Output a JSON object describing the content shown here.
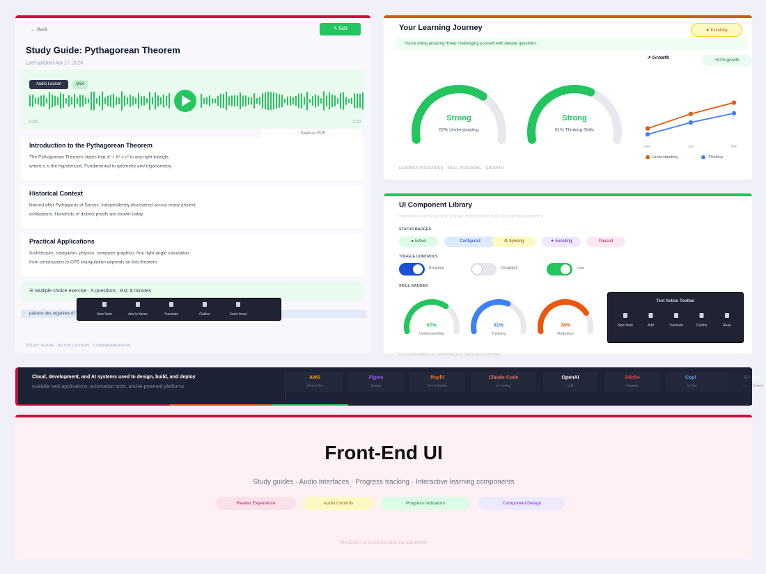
{
  "study_guide": {
    "back": "← Back",
    "edit": "✎ Edit",
    "title": "Study Guide: Pythagorean Theorem",
    "updated": "Last updated Apr 17, 2026",
    "audio_tabs": [
      "Audio Lesson",
      "Q&A"
    ],
    "time_start": "0:00",
    "time_end": "2:29",
    "save": "↓ Save as PDF",
    "sections": [
      {
        "heading": "Introduction to the Pythagorean Theorem",
        "lines": [
          "The Pythagorean Theorem states that a² + b² = c² in any right triangle,",
          "where c is the hypotenuse. Fundamental to geometry and trigonometry."
        ]
      },
      {
        "heading": "Historical Context",
        "lines": [
          "Named after Pythagoras of Samos. Independently discovered across many ancient",
          "civilizations. Hundreds of distinct proofs are known today."
        ]
      },
      {
        "heading": "Practical Applications",
        "lines": [
          "Architecture, navigation, physics, computer graphics. Any right-angle calculation",
          "from construction to GPS triangulation depends on this theorem."
        ]
      }
    ],
    "exercise": "☰ Multiple choice exercise · 5 questions · Est. 8 minutes",
    "highlight": "paisons des organites d'i",
    "toolbar": [
      "New Note",
      "Add to Items",
      "Translate",
      "Outline",
      "Send Issue"
    ],
    "footer": "STUDY GUIDE · AUDIO LESSON · COMPREHENSION"
  },
  "journey": {
    "title": "Your Learning Journey",
    "badge": "★ Excelling",
    "banner": "You're doing amazing! Keep challenging yourself with deeper questions.",
    "gauges": [
      {
        "status": "Strong",
        "percent": 67,
        "caption": "67% Understanding"
      },
      {
        "status": "Strong",
        "percent": 61,
        "caption": "61% Thinking Skills"
      }
    ],
    "growth": {
      "label": "↗ Growth",
      "badge": "+91% growth",
      "categories": [
        "Dec",
        "Jan",
        "Feb"
      ],
      "ylim": [
        0,
        100
      ],
      "series": [
        {
          "name": "Understanding",
          "color": "#ea580c",
          "values": [
            32,
            54,
            71
          ]
        },
        {
          "name": "Thinking",
          "color": "#3b82f6",
          "values": [
            23,
            41,
            55
          ]
        }
      ]
    },
    "footer": "LEARNER PROGRESS · SKILL TRACKING · GROWTH"
  },
  "library": {
    "title": "UI Component Library",
    "subtitle": "Interactive elements and display components built for learning platforms",
    "badges_heading": "STATUS BADGES",
    "badges": [
      {
        "label": "● Active",
        "bg": "#dcfce7",
        "fg": "#166534"
      },
      {
        "label": "Configured",
        "bg": "#dbeafe",
        "fg": "#1e40af"
      },
      {
        "label": "⚙ Syncing",
        "bg": "#fef9c3",
        "fg": "#854d0e"
      },
      {
        "label": "✦ Excelling",
        "bg": "#ede9fe",
        "fg": "#5b21b6"
      },
      {
        "label": "Paused",
        "bg": "#fce7f3",
        "fg": "#9d174d"
      }
    ],
    "toggles_heading": "TOGGLE CONTROLS",
    "toggles": [
      {
        "label": "Enabled",
        "on": true,
        "color": "#1d4ed8"
      },
      {
        "label": "Disabled",
        "on": false,
        "color": "#e5e7eb"
      },
      {
        "label": "Live",
        "on": true,
        "color": "#22c55e"
      }
    ],
    "gauges_heading": "SKILL GAUGES",
    "gauges": [
      {
        "value": 67,
        "label": "67%",
        "caption": "Understanding",
        "color": "#22c55e"
      },
      {
        "value": 61,
        "label": "61%",
        "caption": "Thinking",
        "color": "#3b82f6"
      },
      {
        "value": 78,
        "label": "78%",
        "caption": "Retention",
        "color": "#ea580c"
      }
    ],
    "toolbar_title": "Text Action Toolbar",
    "toolbar": [
      "New Note",
      "Add",
      "Translate",
      "Outline",
      "Read"
    ],
    "footer": "UI COMPONENTS · CONTROLS · DESIGN SYSTEM"
  },
  "tools_band": {
    "lines": [
      "Cloud, development, and AI systems used to design, build, and deploy",
      "scalable web applications, automation tools, and AI-powered platforms."
    ],
    "tools": [
      {
        "name": "AWS",
        "role": "Cloud Infra",
        "color": "#f59e0b"
      },
      {
        "name": "Figma",
        "role": "Design",
        "color": "#a855f7"
      },
      {
        "name": "Replit",
        "role": "Dev & Deploy",
        "color": "#f97316"
      },
      {
        "name": "Claude Code",
        "role": "AI Coding",
        "color": "#e0735a"
      },
      {
        "name": "OpenAI",
        "role": "LLM",
        "color": "#ffffff"
      },
      {
        "name": "Adobe",
        "role": "Creative",
        "color": "#ef4444"
      },
      {
        "name": "Copilot",
        "role": "AI Coding",
        "color": "#60a5fa"
      },
      {
        "name": "GitHub",
        "role": "Version Control",
        "color": "#ffffff"
      }
    ]
  },
  "hero": {
    "title": "Front-End UI",
    "subtitle": "Study guides · Audio interfaces · Progress tracking · Interactive learning components",
    "tags": [
      {
        "label": "Reader Experience",
        "bg": "#fbe1ea",
        "fg": "#be185d"
      },
      {
        "label": "Audio Controls",
        "bg": "#fef9c3",
        "fg": "#a16207"
      },
      {
        "label": "Progress Indicators",
        "bg": "#dcfce7",
        "fg": "#15803d"
      },
      {
        "label": "Component Design",
        "bg": "#ede9fe",
        "fg": "#6d28d9"
      }
    ],
    "footer": "PRODUCT & OPERATIONS LEADERSHIP"
  }
}
